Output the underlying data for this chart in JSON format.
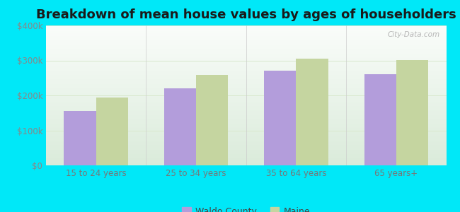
{
  "title": "Breakdown of mean house values by ages of householders",
  "categories": [
    "15 to 24 years",
    "25 to 34 years",
    "35 to 64 years",
    "65 years+"
  ],
  "waldo_values": [
    155000,
    220000,
    270000,
    260000
  ],
  "maine_values": [
    193000,
    258000,
    305000,
    302000
  ],
  "waldo_color": "#b39ddb",
  "maine_color": "#c5d5a0",
  "ylim": [
    0,
    400000
  ],
  "yticks": [
    0,
    100000,
    200000,
    300000,
    400000
  ],
  "ytick_labels": [
    "$0",
    "$100k",
    "$200k",
    "$300k",
    "$400k"
  ],
  "background_outer": "#00e8f8",
  "grid_color": "#d8e8cc",
  "title_fontsize": 13,
  "tick_fontsize": 8.5,
  "legend_labels": [
    "Waldo County",
    "Maine"
  ],
  "watermark": "City-Data.com",
  "bar_width": 0.32
}
